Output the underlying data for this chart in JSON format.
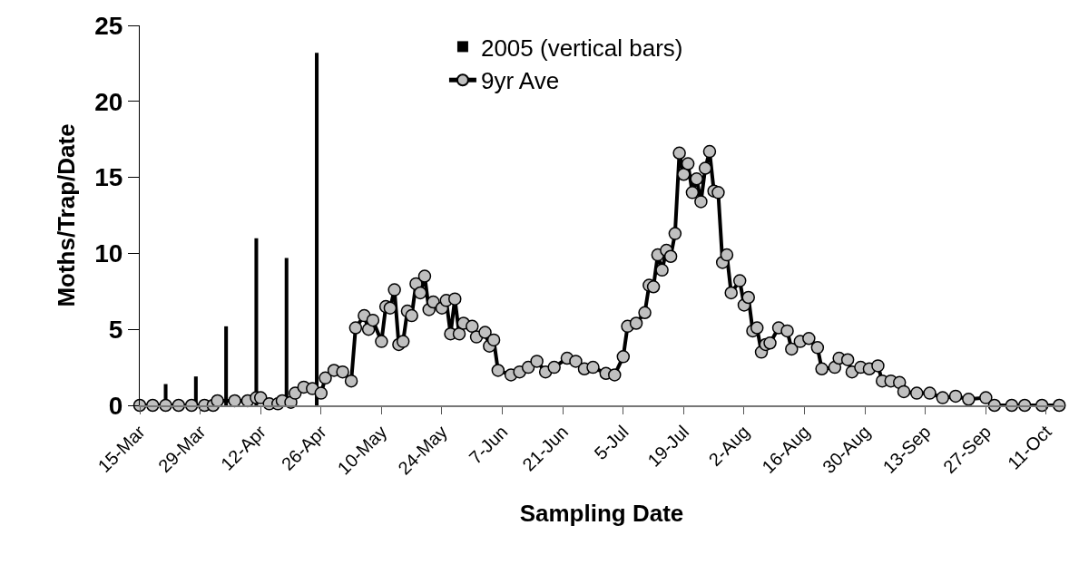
{
  "chart_data": {
    "type": "line",
    "xlabel": "Sampling Date",
    "ylabel": "Moths/Trap/Date",
    "xlim": [
      "--03-15",
      "--10-15"
    ],
    "xticks": [
      {
        "value": "--03-15",
        "label": "15-Mar"
      },
      {
        "value": "--03-29",
        "label": "29-Mar"
      },
      {
        "value": "--04-12",
        "label": "12-Apr"
      },
      {
        "value": "--04-26",
        "label": "26-Apr"
      },
      {
        "value": "--05-10",
        "label": "10-May"
      },
      {
        "value": "--05-24",
        "label": "24-May"
      },
      {
        "value": "--06-07",
        "label": "7-Jun"
      },
      {
        "value": "--06-21",
        "label": "21-Jun"
      },
      {
        "value": "--07-05",
        "label": "5-Jul"
      },
      {
        "value": "--07-19",
        "label": "19-Jul"
      },
      {
        "value": "--08-02",
        "label": "2-Aug"
      },
      {
        "value": "--08-16",
        "label": "16-Aug"
      },
      {
        "value": "--08-30",
        "label": "30-Aug"
      },
      {
        "value": "--09-13",
        "label": "13-Sep"
      },
      {
        "value": "--09-27",
        "label": "27-Sep"
      },
      {
        "value": "--10-11",
        "label": "11-Oct"
      }
    ],
    "ylim": [
      0,
      25
    ],
    "yticks": [
      0,
      5,
      10,
      15,
      20,
      25
    ],
    "grid": false,
    "legend": "top",
    "series": [
      {
        "name": "2005 (vertical bars)",
        "type": "bar",
        "color": "#000000",
        "x": [
          "--03-21",
          "--03-28",
          "--04-04",
          "--04-11",
          "--04-18",
          "--04-25"
        ],
        "values": [
          1.4,
          1.9,
          5.2,
          11.0,
          9.7,
          23.2
        ]
      },
      {
        "name": "9yr Ave",
        "color": "#c0c0c0",
        "marker": "circle",
        "line_style": "solid",
        "x": [
          "--03-15",
          "--03-18",
          "--03-21",
          "--03-24",
          "--03-27",
          "--03-30",
          "--04-01",
          "--04-02",
          "--04-06",
          "--04-09",
          "--04-11",
          "--04-12",
          "--04-14",
          "--04-16",
          "--04-17",
          "--04-19",
          "--04-20",
          "--04-22",
          "--04-24",
          "--04-26",
          "--04-27",
          "--04-29",
          "--05-01",
          "--05-03",
          "--05-04",
          "--05-06",
          "--05-07",
          "--05-08",
          "--05-10",
          "--05-11",
          "--05-12",
          "--05-13",
          "--05-14",
          "--05-15",
          "--05-16",
          "--05-17",
          "--05-18",
          "--05-19",
          "--05-20",
          "--05-21",
          "--05-22",
          "--05-24",
          "--05-25",
          "--05-26",
          "--05-27",
          "--05-28",
          "--05-29",
          "--05-31",
          "--06-01",
          "--06-03",
          "--06-04",
          "--06-05",
          "--06-06",
          "--06-09",
          "--06-11",
          "--06-13",
          "--06-15",
          "--06-17",
          "--06-19",
          "--06-22",
          "--06-24",
          "--06-26",
          "--06-28",
          "--07-01",
          "--07-03",
          "--07-05",
          "--07-06",
          "--07-08",
          "--07-10",
          "--07-11",
          "--07-12",
          "--07-13",
          "--07-14",
          "--07-15",
          "--07-16",
          "--07-17",
          "--07-18",
          "--07-19",
          "--07-20",
          "--07-21",
          "--07-22",
          "--07-23",
          "--07-24",
          "--07-25",
          "--07-26",
          "--07-27",
          "--07-28",
          "--07-29",
          "--07-30",
          "--08-01",
          "--08-02",
          "--08-03",
          "--08-04",
          "--08-05",
          "--08-06",
          "--08-07",
          "--08-08",
          "--08-10",
          "--08-12",
          "--08-13",
          "--08-15",
          "--08-17",
          "--08-19",
          "--08-20",
          "--08-23",
          "--08-24",
          "--08-26",
          "--08-27",
          "--08-29",
          "--08-31",
          "--09-02",
          "--09-03",
          "--09-05",
          "--09-07",
          "--09-08",
          "--09-11",
          "--09-14",
          "--09-17",
          "--09-20",
          "--09-23",
          "--09-27",
          "--09-29",
          "--10-03",
          "--10-06",
          "--10-10",
          "--10-14"
        ],
        "values": [
          0,
          0,
          0,
          0,
          0,
          0,
          0,
          0.3,
          0.3,
          0.3,
          0.5,
          0.5,
          0.1,
          0.1,
          0.3,
          0.2,
          0.8,
          1.2,
          1.1,
          0.8,
          1.8,
          2.3,
          2.2,
          1.6,
          5.1,
          5.9,
          5.0,
          5.6,
          4.2,
          6.5,
          6.4,
          7.6,
          4.0,
          4.2,
          6.2,
          5.9,
          8.0,
          7.4,
          8.5,
          6.3,
          6.8,
          6.4,
          6.9,
          4.7,
          7.0,
          4.7,
          5.4,
          5.2,
          4.5,
          4.8,
          3.9,
          4.3,
          2.3,
          2.0,
          2.2,
          2.5,
          2.9,
          2.2,
          2.5,
          3.1,
          2.9,
          2.4,
          2.5,
          2.1,
          2.0,
          3.2,
          5.2,
          5.4,
          6.1,
          7.9,
          7.8,
          9.9,
          8.9,
          10.2,
          9.8,
          11.3,
          16.6,
          15.2,
          15.9,
          14.0,
          14.9,
          13.4,
          15.6,
          16.7,
          14.1,
          14.0,
          9.4,
          9.9,
          7.4,
          8.2,
          6.6,
          7.1,
          4.9,
          5.1,
          3.5,
          4.0,
          4.1,
          5.1,
          4.9,
          3.7,
          4.2,
          4.4,
          3.8,
          2.4,
          2.5,
          3.1,
          3.0,
          2.2,
          2.5,
          2.4,
          2.6,
          1.6,
          1.6,
          1.5,
          0.9,
          0.8,
          0.8,
          0.5,
          0.6,
          0.4,
          0.5,
          0,
          0,
          0,
          0,
          0
        ]
      }
    ]
  }
}
